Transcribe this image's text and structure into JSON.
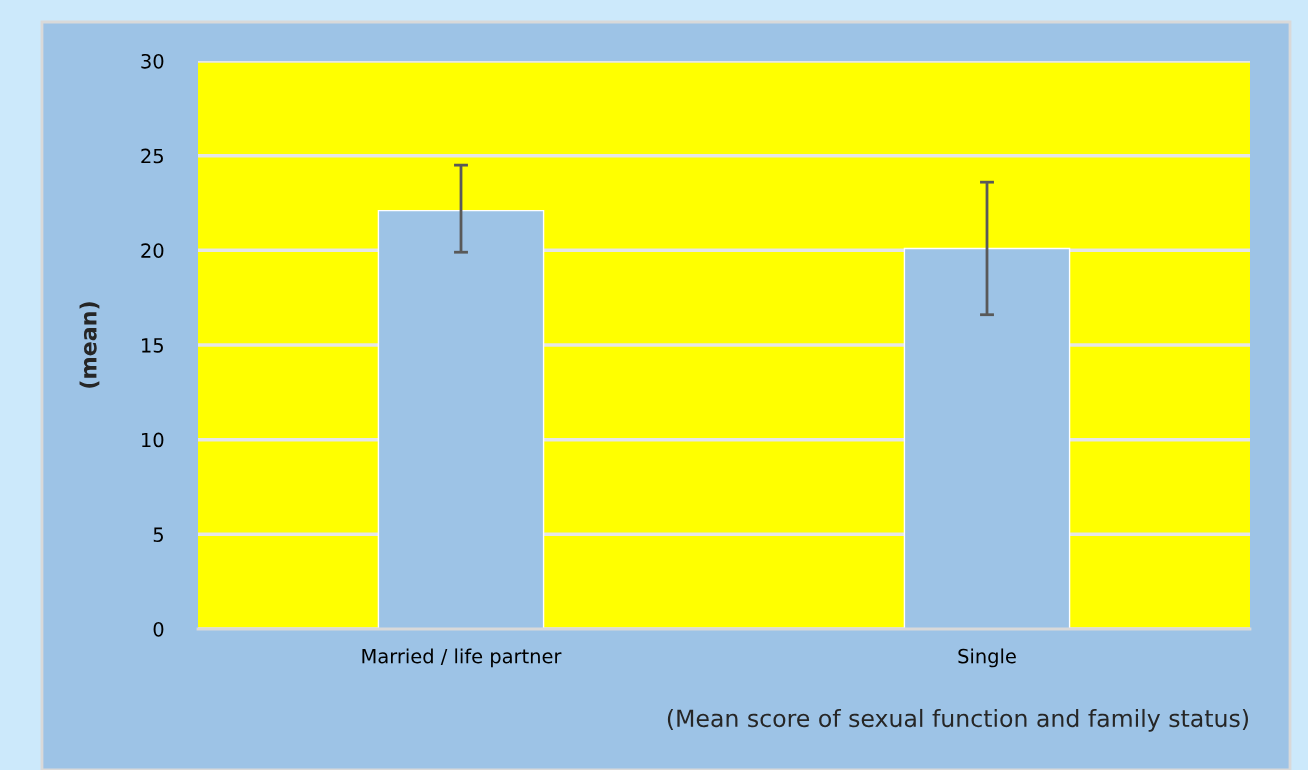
{
  "chart_data": {
    "type": "bar",
    "xlabel": "(Mean score of sexual function and family status)",
    "ylabel": "(mean)",
    "categories": [
      "Married / life partner",
      "Single"
    ],
    "values": [
      22.1,
      20.1
    ],
    "errors": [
      [
        19.9,
        24.5
      ],
      [
        16.6,
        23.6
      ]
    ],
    "color": "#9dc3e6",
    "ylim": [
      0,
      30
    ],
    "yticks": [
      0,
      5,
      10,
      15,
      20,
      25,
      30
    ],
    "grid": "y",
    "legend": false
  }
}
